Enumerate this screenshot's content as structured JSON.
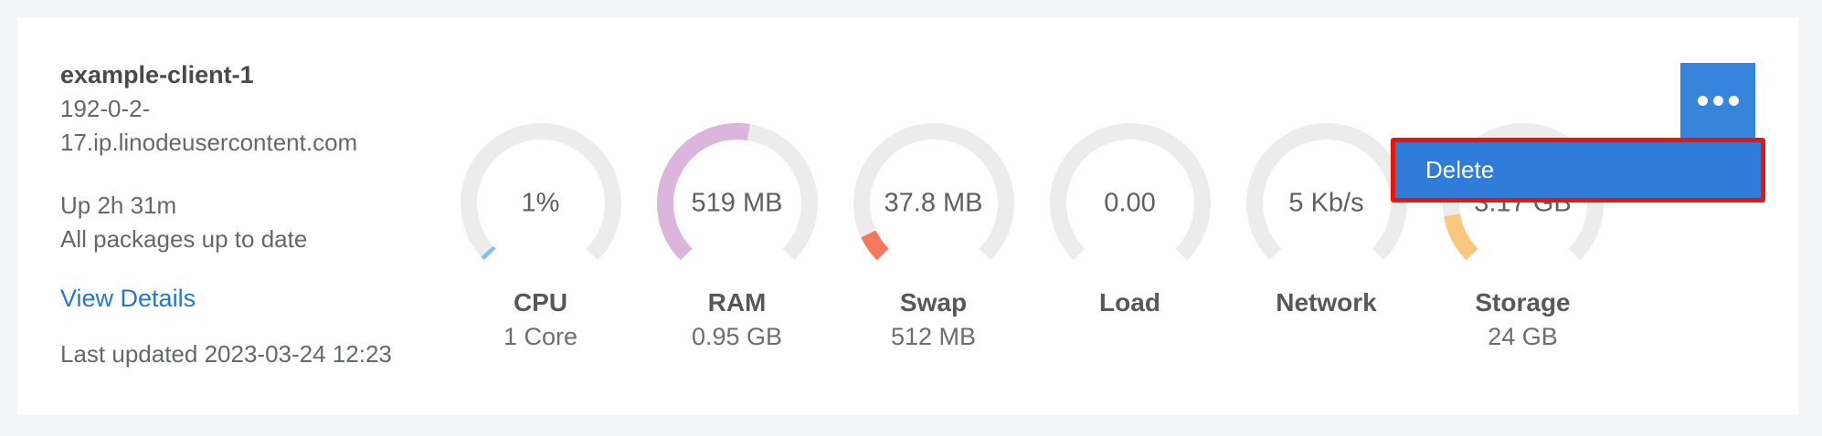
{
  "host": {
    "name": "example-client-1",
    "fqdn": "192-0-2-17.ip.linodeusercontent.com",
    "uptime": "Up 2h 31m",
    "packages_status": "All packages up to date",
    "view_details_label": "View Details",
    "last_updated": "Last updated 2023-03-24 12:23"
  },
  "gauges": [
    {
      "id": "cpu",
      "value": "1%",
      "label": "CPU",
      "sub": "1 Core",
      "fraction": 0.012,
      "color": "#8abfec"
    },
    {
      "id": "ram",
      "value": "519 MB",
      "label": "RAM",
      "sub": "0.95 GB",
      "fraction": 0.533,
      "color": "#dcb5dd"
    },
    {
      "id": "swap",
      "value": "37.8 MB",
      "label": "Swap",
      "sub": "512 MB",
      "fraction": 0.074,
      "color": "#f5775c"
    },
    {
      "id": "load",
      "value": "0.00",
      "label": "Load",
      "sub": "",
      "fraction": 0,
      "color": "#8abfec"
    },
    {
      "id": "network",
      "value": "5 Kb/s",
      "label": "Network",
      "sub": "",
      "fraction": 0,
      "color": "#8abfec"
    },
    {
      "id": "storage",
      "value": "3.17 GB",
      "label": "Storage",
      "sub": "24 GB",
      "fraction": 0.132,
      "color": "#f9c77f"
    }
  ],
  "menu": {
    "delete_label": "Delete"
  },
  "icons": {
    "kebab": "ellipsis"
  },
  "colors": {
    "accent_blue": "#3684dc",
    "menu_blue": "#2f7cd9",
    "annotation_red": "#e6170a",
    "link_blue": "#2377cf",
    "gauge_track": "#ececec",
    "card_background": "#ffffff",
    "page_background": "#f4f5f7"
  }
}
